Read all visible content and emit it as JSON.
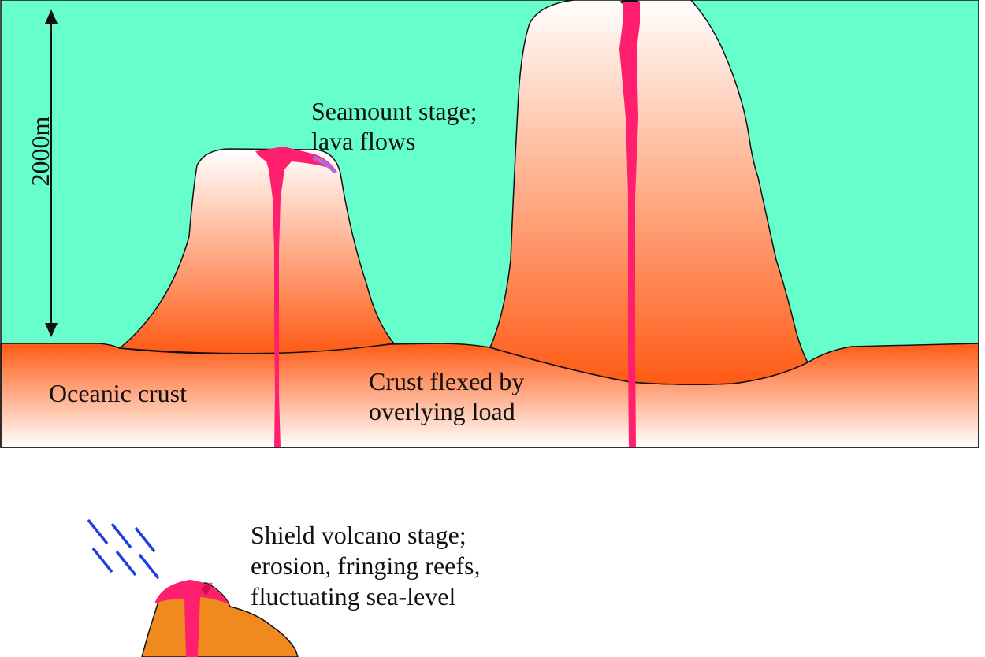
{
  "scale": {
    "label": "2000m"
  },
  "labels": {
    "seamount_line1": "Seamount stage;",
    "seamount_line2": "lava flows",
    "oceanic_crust": "Oceanic crust",
    "crust_flexed_line1": "Crust flexed by",
    "crust_flexed_line2": "overlying load",
    "shield_line1": "Shield volcano stage;",
    "shield_line2": "erosion, fringing reefs,",
    "shield_line3": "fluctuating sea-level"
  },
  "colors": {
    "ocean": "#66ffcc",
    "crust_dark": "#ff5a14",
    "crust_light": "#ffffff",
    "magma": "#ff1f6e",
    "shield_volcano": "#f08a1e",
    "rain": "#1f3fe0",
    "outline": "#111111"
  }
}
